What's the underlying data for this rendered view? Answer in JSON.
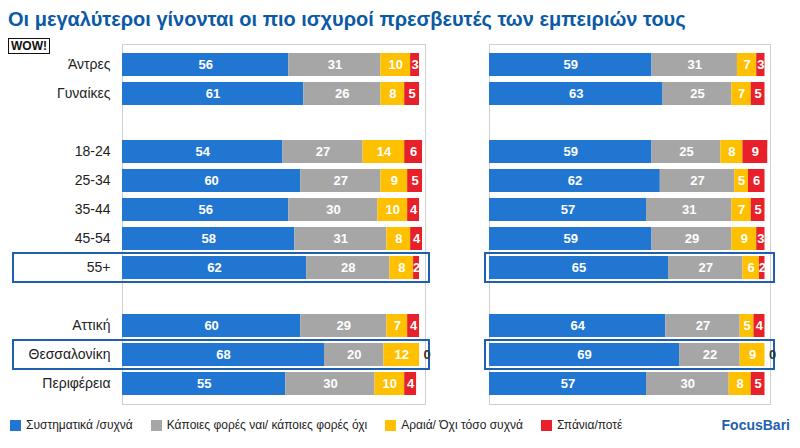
{
  "chart_data": [
    {
      "type": "bar",
      "title": "Οι μεγαλύτεροι γίνονται οι πιο ισχυροί πρεσβευτές των εμπειριών τους",
      "orientation": "horizontal",
      "stacked": true,
      "data_labels": true,
      "tick_labels": "y",
      "legend": "bottom",
      "annotations": [
        "WOW!",
        "FocusBari"
      ],
      "categories": [
        "Άντρες",
        "Γυναίκες",
        null,
        "18-24",
        "25-34",
        "35-44",
        "45-54",
        "55+",
        null,
        "Αττική",
        "Θεσσαλονίκη",
        "Περιφέρεια"
      ],
      "xlim": [
        0,
        102
      ],
      "series": [
        {
          "name": "Συστηματικά /συχνά",
          "color": "#2176d2",
          "values": [
            56,
            61,
            null,
            54,
            60,
            56,
            58,
            62,
            null,
            60,
            68,
            55
          ]
        },
        {
          "name": "Κάποιες φορές ναι/ κάποιες φορές όχι",
          "color": "#a6a6a6",
          "values": [
            31,
            26,
            null,
            27,
            27,
            30,
            31,
            28,
            null,
            29,
            20,
            30
          ]
        },
        {
          "name": "Αραιά/ Όχι τόσο συχνά",
          "color": "#ffc000",
          "values": [
            10,
            8,
            null,
            14,
            9,
            10,
            8,
            8,
            null,
            7,
            12,
            10
          ]
        },
        {
          "name": "Σπάνια/ποτέ",
          "color": "#e8202a",
          "values": [
            3,
            5,
            null,
            6,
            5,
            4,
            4,
            2,
            null,
            4,
            0,
            4
          ]
        }
      ]
    },
    {
      "type": "bar",
      "orientation": "horizontal",
      "stacked": true,
      "data_labels": true,
      "tick_labels": false,
      "categories": [
        "Άντρες",
        "Γυναίκες",
        null,
        "18-24",
        "25-34",
        "35-44",
        "45-54",
        "55+",
        null,
        "Αττική",
        "Θεσσαλονίκη",
        "Περιφέρεια"
      ],
      "xlim": [
        0,
        102
      ],
      "series": [
        {
          "name": "Συστηματικά /συχνά",
          "color": "#2176d2",
          "values": [
            59,
            63,
            null,
            59,
            62,
            57,
            59,
            65,
            null,
            64,
            69,
            57
          ]
        },
        {
          "name": "Κάποιες φορές ναι/ κάποιες φορές όχι",
          "color": "#a6a6a6",
          "values": [
            31,
            25,
            null,
            25,
            27,
            31,
            29,
            27,
            null,
            27,
            22,
            30
          ]
        },
        {
          "name": "Αραιά/ Όχι τόσο συχνά",
          "color": "#ffc000",
          "values": [
            7,
            7,
            null,
            8,
            5,
            7,
            9,
            6,
            null,
            5,
            9,
            8
          ]
        },
        {
          "name": "Σπάνια/ποτέ",
          "color": "#e8202a",
          "values": [
            3,
            5,
            null,
            9,
            6,
            5,
            3,
            2,
            null,
            4,
            0,
            5
          ]
        }
      ]
    }
  ]
}
